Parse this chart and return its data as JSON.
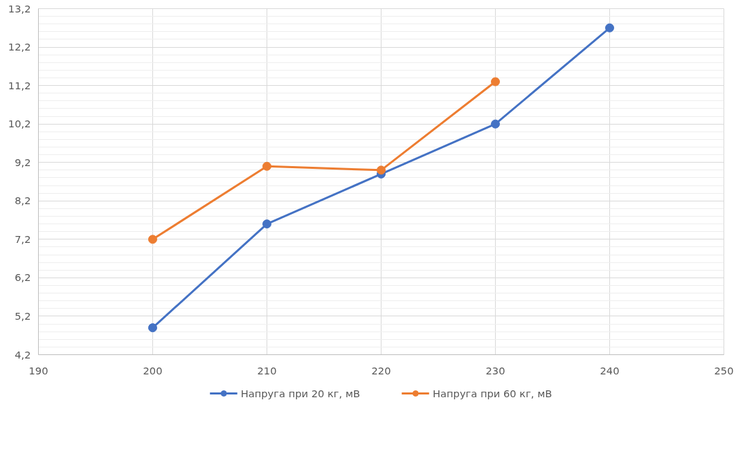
{
  "chart_data": {
    "type": "line",
    "x": [
      200,
      210,
      220,
      230,
      240
    ],
    "series": [
      {
        "name": "Напруга при 20 кг, мВ",
        "color": "#4472c4",
        "values": [
          4.9,
          7.6,
          8.9,
          10.2,
          12.7
        ]
      },
      {
        "name": "Напруга при 60 кг, мВ",
        "color": "#ed7d31",
        "values": [
          7.2,
          9.1,
          9.0,
          11.3,
          null
        ]
      }
    ],
    "xlim": [
      190,
      250
    ],
    "xticks": [
      190,
      200,
      210,
      220,
      230,
      240,
      250
    ],
    "ylim": [
      4.2,
      13.2
    ],
    "yticks": [
      {
        "value": 4.2,
        "label": "4,2"
      },
      {
        "value": 5.2,
        "label": "5,2"
      },
      {
        "value": 6.2,
        "label": "6,2"
      },
      {
        "value": 7.2,
        "label": "7,2"
      },
      {
        "value": 8.2,
        "label": "8,2"
      },
      {
        "value": 9.2,
        "label": "9,2"
      },
      {
        "value": 10.2,
        "label": "10,2"
      },
      {
        "value": 11.2,
        "label": "11,2"
      },
      {
        "value": 12.2,
        "label": "12,2"
      },
      {
        "value": 13.2,
        "label": "13,2"
      }
    ],
    "grid": true,
    "legend": "bottom",
    "marker": "circle",
    "line_style": "solid"
  }
}
